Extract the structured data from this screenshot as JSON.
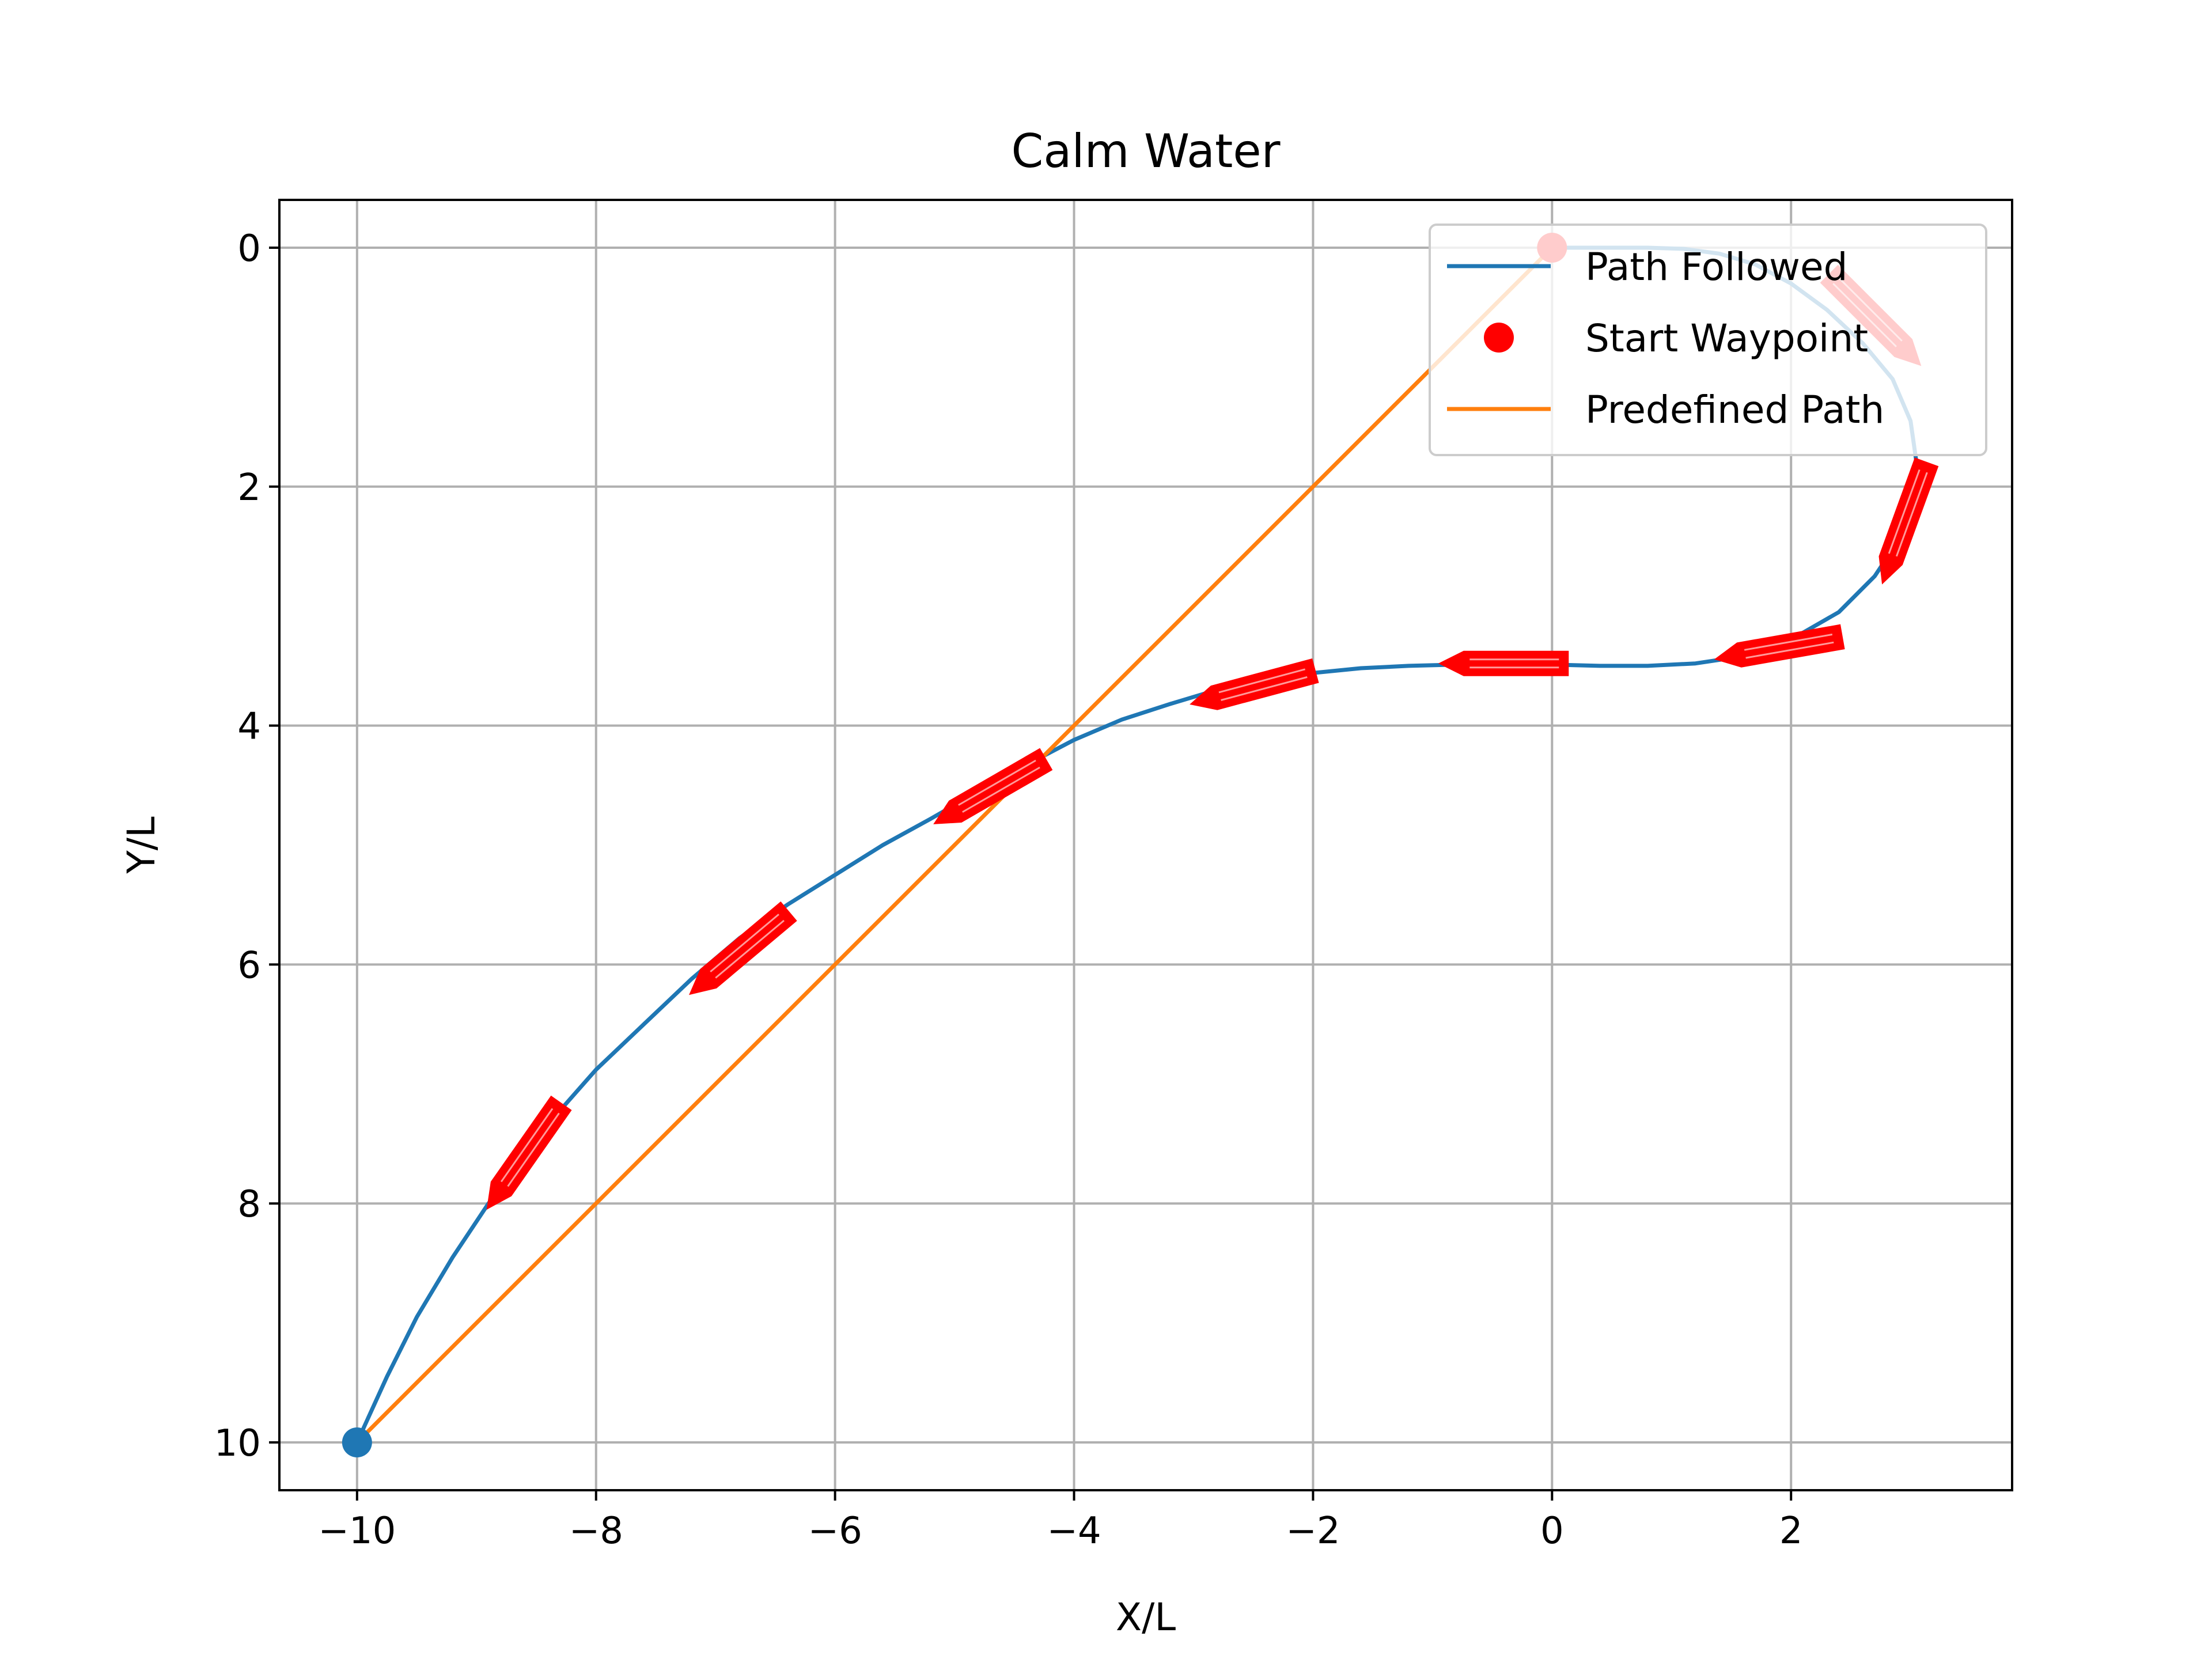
{
  "chart_data": {
    "type": "line",
    "title": "Calm Water",
    "xlabel": "X/L",
    "ylabel": "Y/L",
    "xlim": [
      -10.65,
      3.85
    ],
    "ylim": [
      10.4,
      -0.4
    ],
    "y_inverted": true,
    "grid": true,
    "legend_position": "top-right",
    "xticks": [
      -10,
      -8,
      -6,
      -4,
      -2,
      0,
      2
    ],
    "xtick_labels": [
      "−10",
      "−8",
      "−6",
      "−4",
      "−2",
      "0",
      "2"
    ],
    "yticks": [
      0,
      2,
      4,
      6,
      8,
      10
    ],
    "ytick_labels": [
      "0",
      "2",
      "4",
      "6",
      "8",
      "10"
    ],
    "series": [
      {
        "name": "Path Followed",
        "color": "#1f77b4",
        "x": [
          -10,
          -9.75,
          -9.5,
          -9.2,
          -8.9,
          -8.6,
          -8.3,
          -8.0,
          -7.6,
          -7.2,
          -6.8,
          -6.4,
          -6.0,
          -5.6,
          -5.2,
          -4.8,
          -4.4,
          -4.0,
          -3.6,
          -3.2,
          -2.8,
          -2.4,
          -2.0,
          -1.6,
          -1.2,
          -0.8,
          -0.4,
          0.0,
          0.4,
          0.8,
          1.2,
          1.6,
          2.0,
          2.4,
          2.7,
          2.9,
          3.0,
          3.05,
          3.0,
          2.85,
          2.6,
          2.3,
          2.0,
          1.7,
          1.4,
          1.1,
          0.8,
          0.5,
          0.2,
          0.0
        ],
        "y": [
          10.0,
          9.45,
          8.95,
          8.45,
          8.0,
          7.6,
          7.22,
          6.88,
          6.5,
          6.12,
          5.78,
          5.5,
          5.25,
          5.0,
          4.78,
          4.55,
          4.33,
          4.12,
          3.95,
          3.82,
          3.7,
          3.62,
          3.56,
          3.52,
          3.5,
          3.49,
          3.48,
          3.49,
          3.5,
          3.5,
          3.48,
          3.42,
          3.28,
          3.05,
          2.75,
          2.45,
          2.15,
          1.8,
          1.45,
          1.1,
          0.8,
          0.52,
          0.3,
          0.14,
          0.05,
          0.01,
          0.0,
          0.0,
          0.0,
          0.0
        ]
      },
      {
        "name": "Predefined Path",
        "color": "#ff7f0e",
        "x": [
          -10,
          0
        ],
        "y": [
          10,
          0
        ]
      }
    ],
    "start_waypoint": {
      "name": "Start Waypoint",
      "color": "#ff0000",
      "x": 0,
      "y": 0
    },
    "end_marker": {
      "color": "#1f77b4",
      "x": -10,
      "y": 10
    },
    "vessel_markers": {
      "color": "#ff0000",
      "poses": [
        {
          "x": 2.7,
          "y": 0.6,
          "heading_deg": 45
        },
        {
          "x": 2.95,
          "y": 2.3,
          "heading_deg": 110
        },
        {
          "x": 1.9,
          "y": 3.35,
          "heading_deg": 170
        },
        {
          "x": -0.4,
          "y": 3.48,
          "heading_deg": 180
        },
        {
          "x": -2.5,
          "y": 3.68,
          "heading_deg": 165
        },
        {
          "x": -4.7,
          "y": 4.55,
          "heading_deg": 150
        },
        {
          "x": -6.8,
          "y": 5.9,
          "heading_deg": 140
        },
        {
          "x": -8.6,
          "y": 7.6,
          "heading_deg": 125
        }
      ]
    },
    "legend": [
      {
        "label": "Path Followed",
        "kind": "line",
        "color": "#1f77b4"
      },
      {
        "label": "Start Waypoint",
        "kind": "marker",
        "color": "#ff0000"
      },
      {
        "label": "Predefined Path",
        "kind": "line",
        "color": "#ff7f0e"
      }
    ]
  }
}
